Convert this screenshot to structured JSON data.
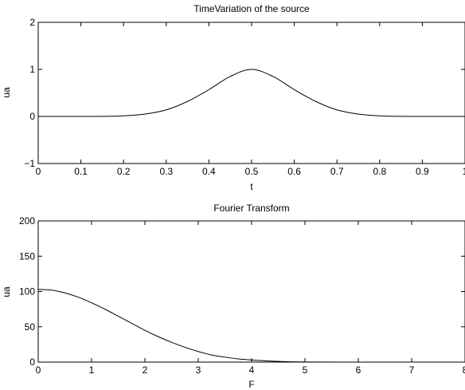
{
  "chart_data": [
    {
      "type": "line",
      "title": "TimeVariation of the source",
      "xlabel": "t",
      "ylabel": "ua",
      "xlim": [
        0,
        1
      ],
      "ylim": [
        -1,
        2
      ],
      "xticks": [
        0,
        0.1,
        0.2,
        0.3,
        0.4,
        0.5,
        0.6,
        0.7,
        0.8,
        0.9,
        1
      ],
      "xtick_labels": [
        "0",
        "0.1",
        "0.2",
        "0.3",
        "0.4",
        "0.5",
        "0.6",
        "0.7",
        "0.8",
        "0.9",
        "1"
      ],
      "yticks": [
        -1,
        0,
        1,
        2
      ],
      "ytick_labels": [
        "−1",
        "0",
        "1",
        "2"
      ],
      "grid": false,
      "line_color": "#000000",
      "series": [
        {
          "x": [
            0,
            0.1,
            0.15,
            0.2,
            0.25,
            0.3,
            0.35,
            0.4,
            0.45,
            0.5,
            0.55,
            0.6,
            0.65,
            0.7,
            0.75,
            0.8,
            0.85,
            0.9,
            1
          ],
          "y": [
            0,
            0,
            0.002,
            0.012,
            0.05,
            0.14,
            0.32,
            0.57,
            0.85,
            1.0,
            0.85,
            0.57,
            0.32,
            0.14,
            0.05,
            0.012,
            0.002,
            0,
            0
          ]
        }
      ]
    },
    {
      "type": "line",
      "title": "Fourier Transform",
      "xlabel": "F",
      "ylabel": "ua",
      "xlim": [
        0,
        8
      ],
      "ylim": [
        0,
        200
      ],
      "xticks": [
        0,
        1,
        2,
        3,
        4,
        5,
        6,
        7,
        8
      ],
      "xtick_labels": [
        "0",
        "1",
        "2",
        "3",
        "4",
        "5",
        "6",
        "7",
        "8"
      ],
      "yticks": [
        0,
        50,
        100,
        150,
        200
      ],
      "ytick_labels": [
        "0",
        "50",
        "100",
        "150",
        "200"
      ],
      "grid": false,
      "line_color": "#000000",
      "series": [
        {
          "x": [
            0,
            0.25,
            0.5,
            0.75,
            1,
            1.25,
            1.5,
            1.75,
            2,
            2.25,
            2.5,
            2.75,
            3,
            3.25,
            3.5,
            3.75,
            4,
            4.5,
            5,
            6,
            7,
            8
          ],
          "y": [
            103,
            102,
            98,
            92,
            84,
            75,
            65,
            55,
            45,
            36,
            28,
            21,
            15,
            10,
            7,
            4.5,
            3,
            1,
            0.2,
            0,
            0,
            0
          ]
        }
      ]
    }
  ]
}
